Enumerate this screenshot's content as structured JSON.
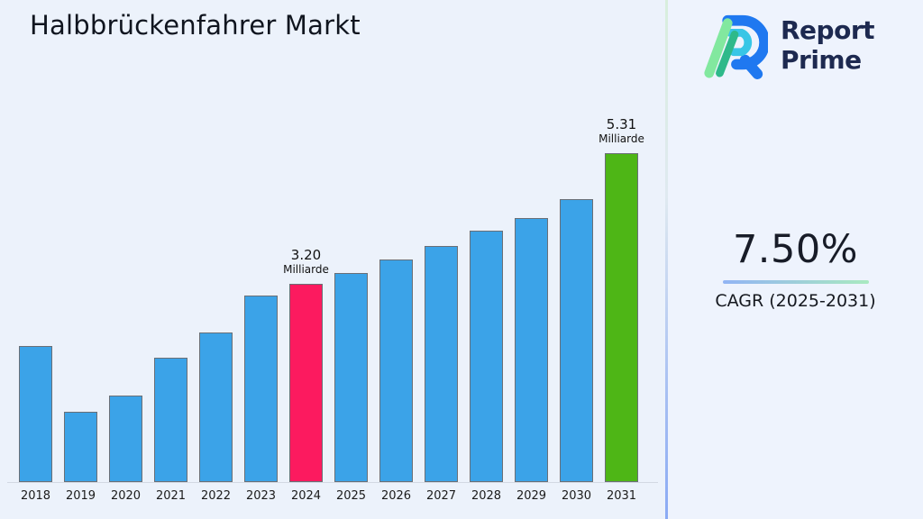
{
  "title": "Halbbrückenfahrer Markt",
  "logo": {
    "line1": "Report",
    "line2": "Prime",
    "icon": "report-prime-mark",
    "text_color": "#1d2950",
    "mark_colors": {
      "blue": "#1f78f0",
      "cyan": "#38c6e6",
      "light_green": "#82e89f",
      "teal": "#2eb98a"
    }
  },
  "side_panel": {
    "cagr_value": "7.50%",
    "cagr_caption": "CAGR (2025-2031)",
    "underline_gradient_start": "#92b4f4",
    "underline_gradient_end": "#a9e9c0"
  },
  "chart_data": {
    "type": "bar",
    "title": "Halbbrückenfahrer Markt",
    "unit": "Milliarde",
    "categories": [
      "2018",
      "2019",
      "2020",
      "2021",
      "2022",
      "2023",
      "2024",
      "2025",
      "2026",
      "2027",
      "2028",
      "2029",
      "2030",
      "2031"
    ],
    "values": [
      2.2,
      1.14,
      1.39,
      2.0,
      2.42,
      3.01,
      3.2,
      3.37,
      3.59,
      3.81,
      4.05,
      4.26,
      4.56,
      5.31
    ],
    "labeled_values": {
      "2024": 3.2,
      "2031": 5.31
    },
    "annotations": [
      {
        "category": "2024",
        "value_label": "3.20",
        "unit_label": "Milliarde"
      },
      {
        "category": "2031",
        "value_label": "5.31",
        "unit_label": "Milliarde"
      }
    ],
    "highlight_colors": {
      "2024": "#fc1a5f",
      "2031": "#4eb616"
    },
    "colors": {
      "bar_default": "#3ba3e8",
      "bar_border": "#6a6f76",
      "axis_line": "#d3d9e3",
      "label_text": "#1b1b1b"
    },
    "xlabel": "",
    "ylabel": "",
    "grid": false,
    "y_axis_visible": false,
    "legend": null
  }
}
